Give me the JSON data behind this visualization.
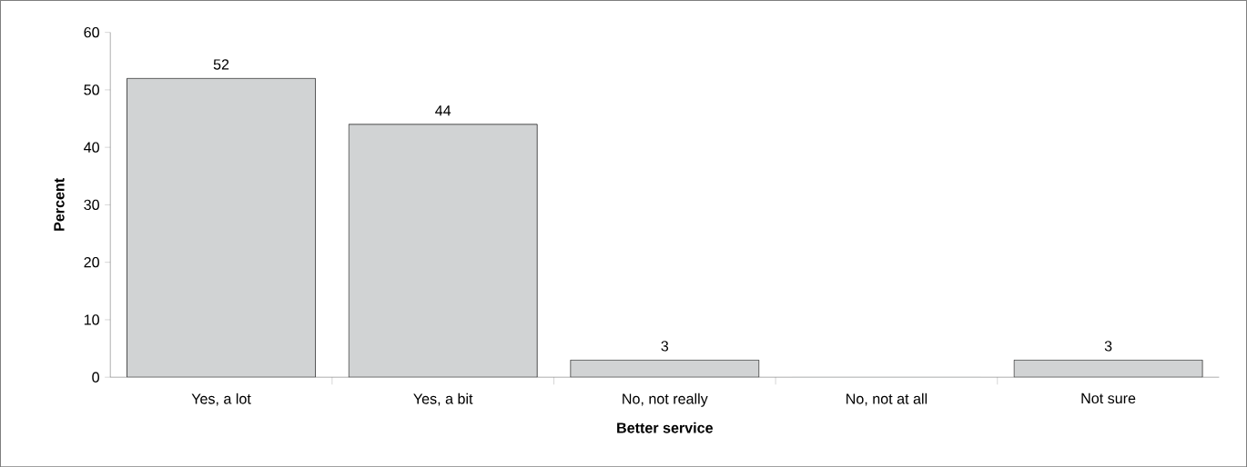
{
  "chart_data": {
    "type": "bar",
    "xlabel": "Better service",
    "ylabel": "Percent",
    "categories": [
      "Yes, a lot",
      "Yes, a bit",
      "No, not really",
      "No, not at all",
      "Not sure"
    ],
    "values": [
      52,
      44,
      3,
      0,
      3
    ],
    "value_labels": [
      "52",
      "44",
      "3",
      null,
      "3"
    ],
    "color": "#d1d3d4",
    "ylim": [
      0,
      60
    ],
    "yticks": [
      0,
      10,
      20,
      30,
      40,
      50,
      60
    ]
  }
}
